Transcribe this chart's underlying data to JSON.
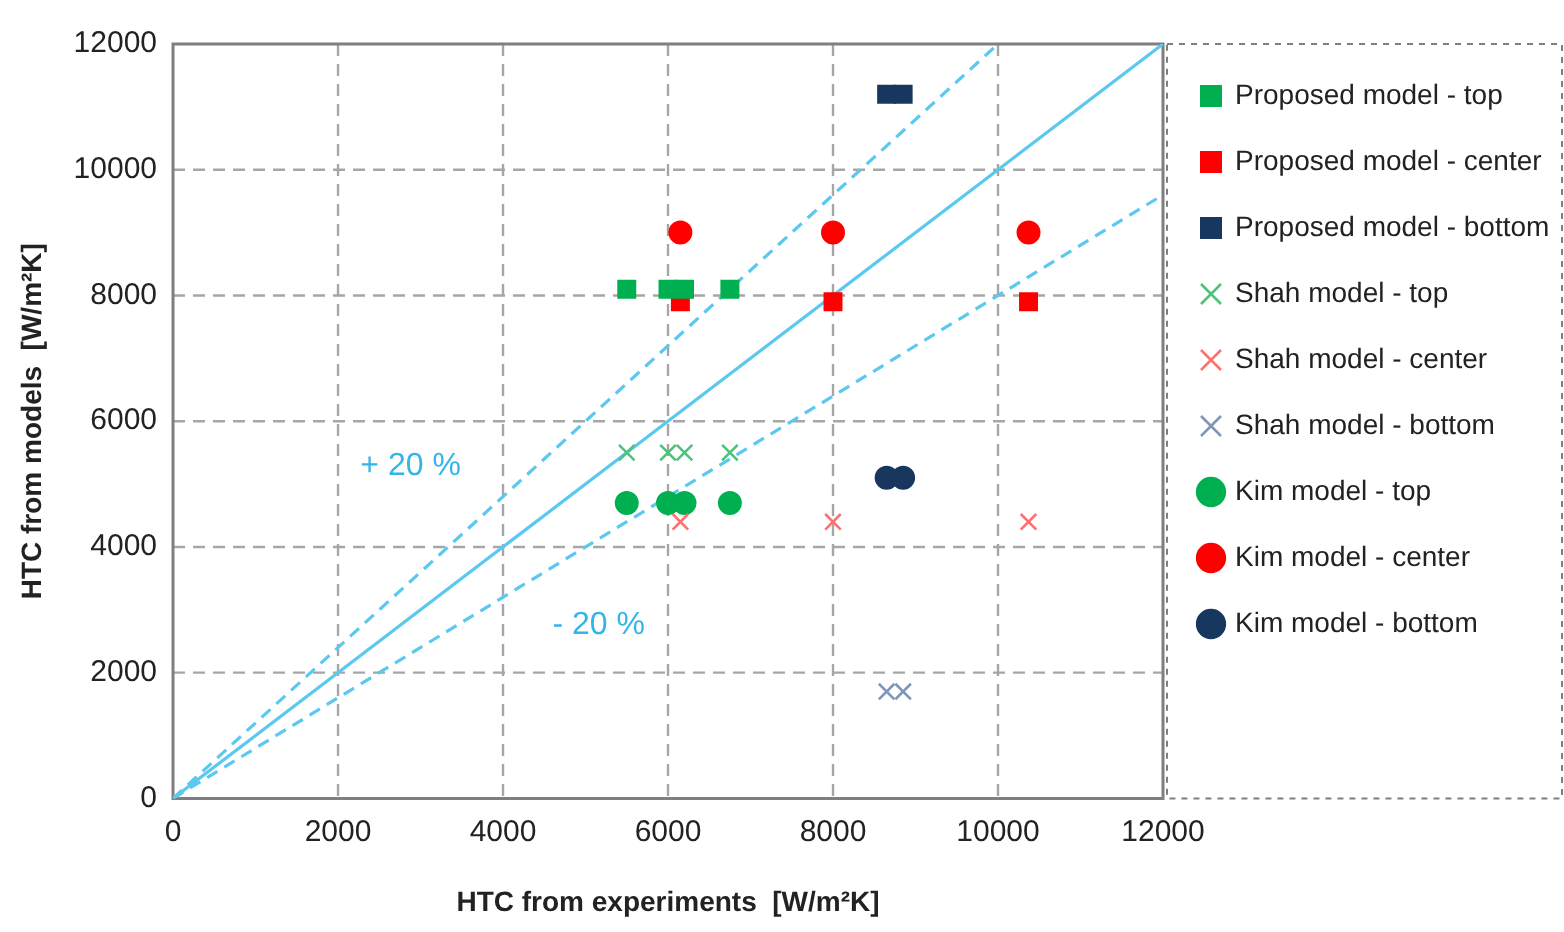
{
  "chart_data": {
    "type": "scatter",
    "xlabel": "HTC from experiments  [W/m²K]",
    "ylabel": "HTC from models  [W/m²K]",
    "xlim": [
      0,
      12000
    ],
    "ylim": [
      0,
      12000
    ],
    "xticks": [
      0,
      2000,
      4000,
      6000,
      8000,
      10000,
      12000
    ],
    "yticks": [
      0,
      2000,
      4000,
      6000,
      8000,
      10000,
      12000
    ],
    "grid": true,
    "legend": "right",
    "series": [
      {
        "name": "Proposed model - top",
        "color": "#00b050",
        "marker": "square",
        "x": [
          5500,
          6000,
          6200,
          6750
        ],
        "values": [
          8100,
          8100,
          8100,
          8100
        ]
      },
      {
        "name": "Proposed model - center",
        "color": "#ff0000",
        "marker": "square",
        "x": [
          6150,
          8000,
          10370
        ],
        "values": [
          7900,
          7900,
          7900
        ]
      },
      {
        "name": "Proposed model - bottom",
        "color": "#17375e",
        "marker": "square",
        "x": [
          8650,
          8850
        ],
        "values": [
          11200,
          11200
        ]
      },
      {
        "name": "Shah model - top",
        "color": "#4bc47a",
        "marker": "cross",
        "x": [
          5500,
          6000,
          6200,
          6750
        ],
        "values": [
          5500,
          5500,
          5500,
          5500
        ]
      },
      {
        "name": "Shah model - center",
        "color": "#ff7070",
        "marker": "cross",
        "x": [
          6150,
          8000,
          10370
        ],
        "values": [
          4400,
          4400,
          4400
        ]
      },
      {
        "name": "Shah model - bottom",
        "color": "#8096b8",
        "marker": "cross",
        "x": [
          8650,
          8850
        ],
        "values": [
          1700,
          1700
        ]
      },
      {
        "name": "Kim model - top",
        "color": "#00b050",
        "marker": "circle",
        "x": [
          5500,
          6000,
          6200,
          6750
        ],
        "values": [
          4700,
          4700,
          4700,
          4700
        ]
      },
      {
        "name": "Kim model - center",
        "color": "#ff0000",
        "marker": "circle",
        "x": [
          6150,
          8000,
          10370
        ],
        "values": [
          9000,
          9000,
          9000
        ]
      },
      {
        "name": "Kim model - bottom",
        "color": "#17375e",
        "marker": "circle",
        "x": [
          8650,
          8850
        ],
        "values": [
          5100,
          5100
        ]
      },
      {
        "type": "line",
        "color": "#5bc8f0",
        "marker": "none",
        "line_style": "solid",
        "x": [
          0,
          12000
        ],
        "values": [
          0,
          12000
        ]
      },
      {
        "type": "line",
        "color": "#5bc8f0",
        "marker": "none",
        "line_style": "dashed",
        "x": [
          0,
          10000
        ],
        "values": [
          0,
          12000
        ]
      },
      {
        "type": "line",
        "color": "#5bc8f0",
        "marker": "none",
        "line_style": "dashed",
        "x": [
          0,
          12000
        ],
        "values": [
          0,
          9600
        ]
      }
    ],
    "annotations": [
      "+ 20 %",
      "- 20 %"
    ]
  }
}
